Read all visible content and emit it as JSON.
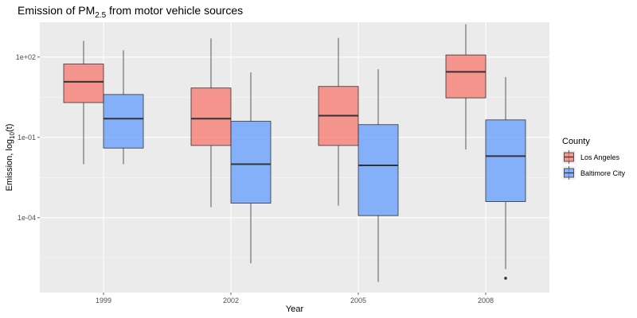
{
  "chart_data": {
    "type": "boxplot",
    "title": {
      "main": "Emission of PM",
      "sub": "2.5",
      "rest": " from motor vehicle sources"
    },
    "xlabel": "Year",
    "ylabel": {
      "main": "Emission, log",
      "sub": "10",
      "rest": "(t)"
    },
    "categories": [
      "1999",
      "2002",
      "2005",
      "2008"
    ],
    "y_scale": "log10",
    "ylim": [
      1.6e-07,
      2000
    ],
    "y_ticks": [
      {
        "value": 100,
        "label": "1e+02"
      },
      {
        "value": 0.1,
        "label": "1e-01"
      },
      {
        "value": 0.0001,
        "label": "1e-04"
      }
    ],
    "grid": true,
    "legend": {
      "title": "County",
      "position": "right"
    },
    "series": [
      {
        "name": "Los Angeles",
        "color": "#F8766D",
        "boxes": [
          {
            "min": 0.01,
            "q1": 2.0,
            "median": 12.0,
            "q3": 55.0,
            "max": 400.0,
            "outliers": []
          },
          {
            "min": 0.00025,
            "q1": 0.05,
            "median": 0.5,
            "q3": 7.0,
            "max": 500.0,
            "outliers": []
          },
          {
            "min": 0.00028,
            "q1": 0.05,
            "median": 0.65,
            "q3": 8.0,
            "max": 520.0,
            "outliers": []
          },
          {
            "min": 0.035,
            "q1": 3.0,
            "median": 28.0,
            "q3": 120.0,
            "max": 1700.0,
            "outliers": []
          }
        ]
      },
      {
        "name": "Baltimore City",
        "color": "#619CFF",
        "boxes": [
          {
            "min": 0.01,
            "q1": 0.04,
            "median": 0.5,
            "q3": 4.0,
            "max": 180.0,
            "outliers": []
          },
          {
            "min": 2e-06,
            "q1": 0.00035,
            "median": 0.01,
            "q3": 0.4,
            "max": 27.0,
            "outliers": []
          },
          {
            "min": 4e-07,
            "q1": 0.00012,
            "median": 0.009,
            "q3": 0.3,
            "max": 35.0,
            "outliers": []
          },
          {
            "min": 1.2e-06,
            "q1": 0.0004,
            "median": 0.02,
            "q3": 0.45,
            "max": 18.0,
            "outliers": [
              5.5e-07
            ]
          }
        ]
      }
    ]
  }
}
